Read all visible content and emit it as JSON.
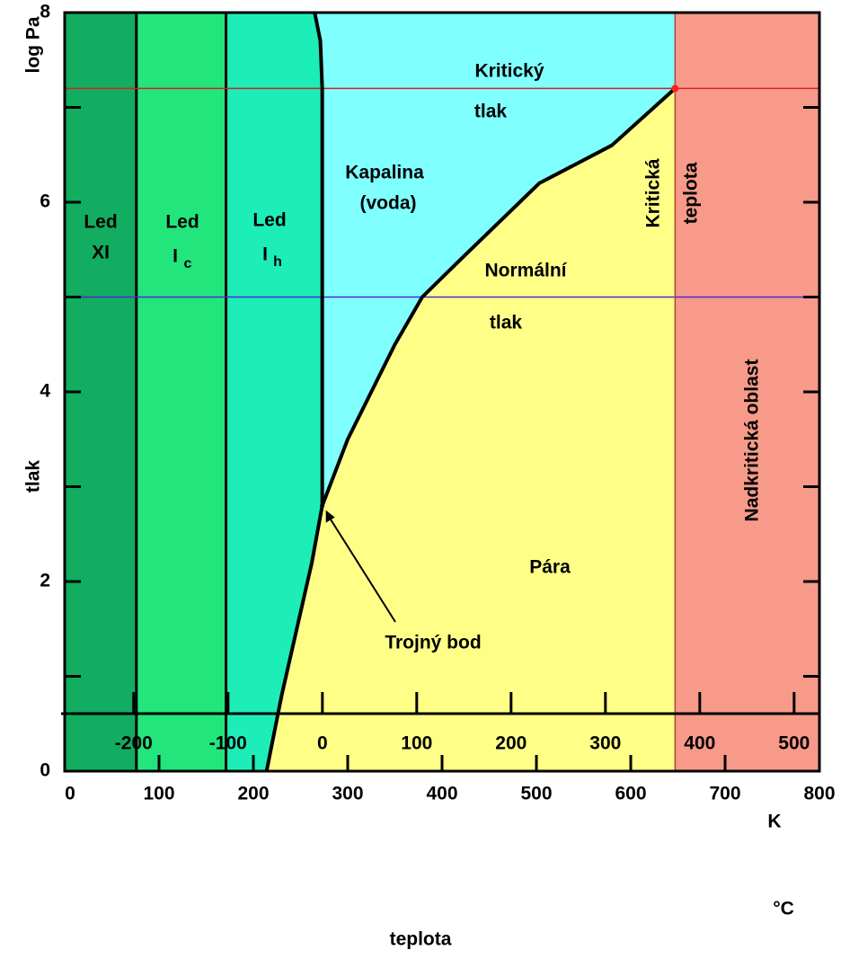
{
  "chart_data": {
    "type": "phase",
    "y_label": "log Pa",
    "y_title": "tlak",
    "x_label": "K",
    "x2_label": "°C",
    "x_title": "teplota",
    "xlim": [
      0,
      800
    ],
    "xticks": [
      0,
      100,
      200,
      300,
      400,
      500,
      600,
      700,
      800
    ],
    "ylim": [
      0,
      8
    ],
    "yticks": [
      0,
      2,
      4,
      6,
      8
    ],
    "yminorticks": [
      1,
      3,
      5,
      7
    ],
    "x2lim": [
      -273.15,
      526.85
    ],
    "x2ticks": [
      -200,
      -100,
      0,
      100,
      200,
      300,
      400,
      500
    ],
    "ice_xi_ic_boundary": 76,
    "ice_ic_ih_boundary": 171,
    "critical_temperature": 647,
    "critical_pressure": 7.2,
    "normal_pressure": 5,
    "triple_point": {
      "x": 273,
      "value": 2.8
    },
    "sublimation_curve": {
      "x": [
        214,
        230,
        246,
        262,
        273
      ],
      "values": [
        0,
        0.8,
        1.5,
        2.2,
        2.8
      ]
    },
    "melting_curve": {
      "x": [
        273,
        273,
        271,
        265
      ],
      "values": [
        2.8,
        7.2,
        7.7,
        8
      ]
    },
    "vaporization_curve": {
      "x": [
        273,
        300,
        350,
        379,
        420,
        503,
        580,
        647
      ],
      "values": [
        2.8,
        3.5,
        4.5,
        5.0,
        5.4,
        6.2,
        6.6,
        7.2
      ]
    },
    "colors": {
      "ice_xi": "#12ad60",
      "ice_ic": "#22e67c",
      "ice_ih": "#1deeb8",
      "liquid": "#80ffff",
      "vapor": "#ffff88",
      "supercritical": "#f89a8a",
      "critical": "#d42020",
      "normal": "#4a2bd0"
    },
    "annotations": [
      "Led",
      "XI",
      "Led",
      "I",
      "c",
      "Led",
      "I",
      "h",
      "Kapalina",
      "(voda)",
      "Kritický",
      "tlak",
      "Normální",
      "tlak",
      "Kritická",
      "teplota",
      "Nadkritická oblast",
      "Pára",
      "Trojný bod"
    ]
  }
}
